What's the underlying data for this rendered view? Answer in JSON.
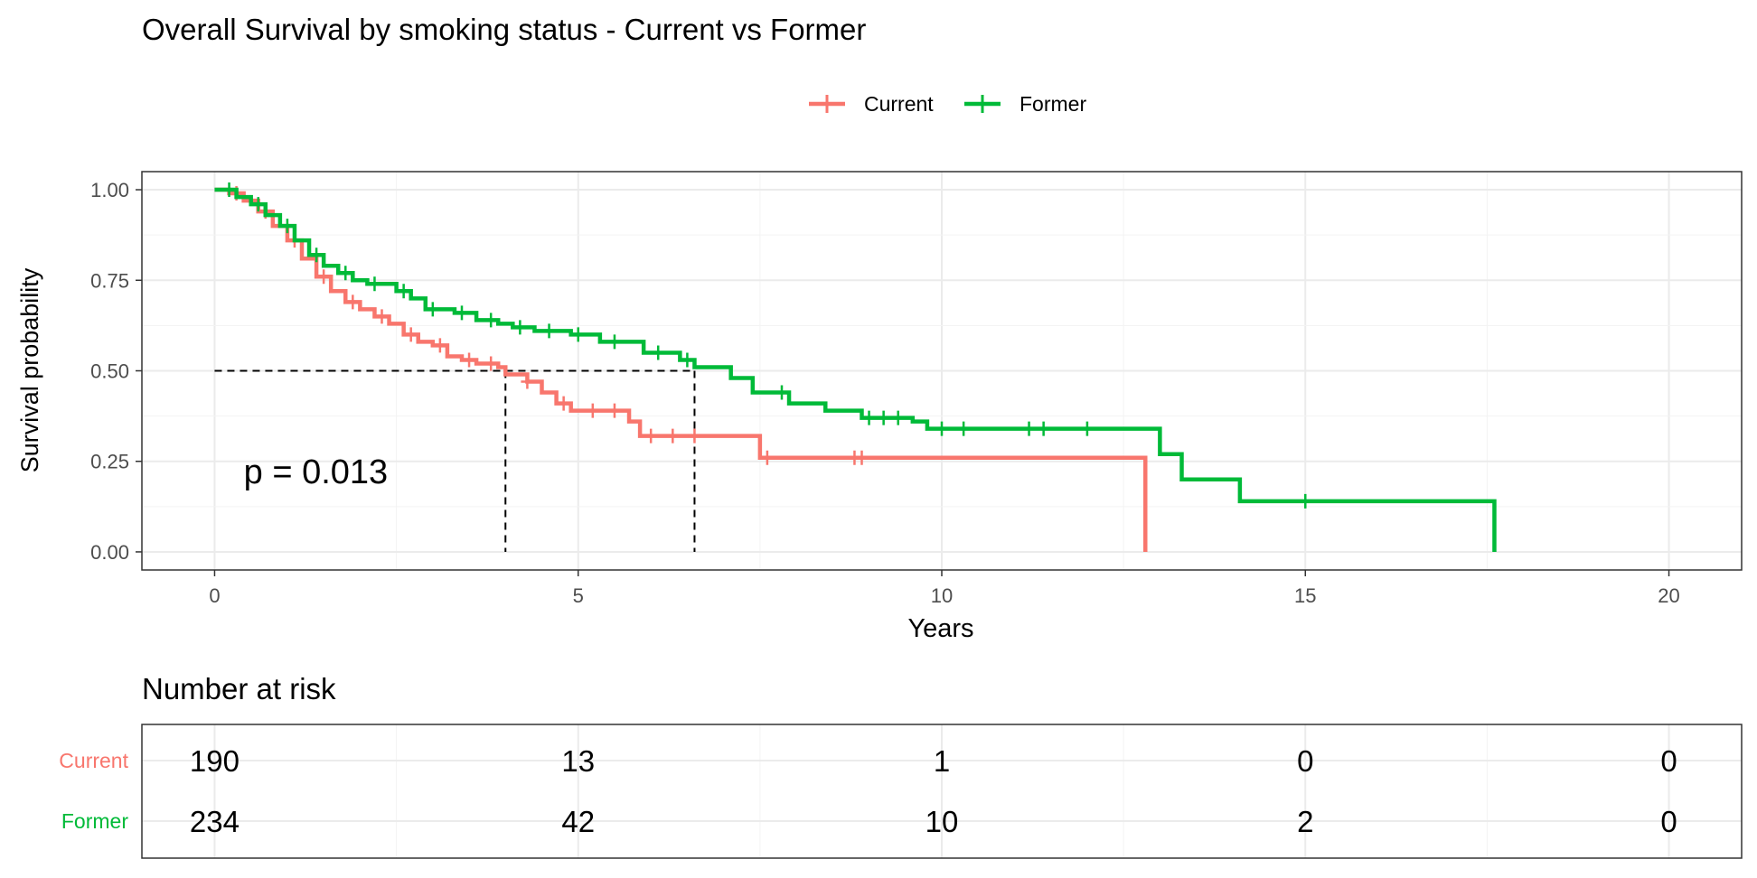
{
  "chart_data": {
    "type": "line",
    "subtype": "kaplan-meier",
    "title": "Overall Survival by smoking status - Current vs Former",
    "xlabel": "Years",
    "ylabel": "Survival probability",
    "xlim": [
      -1,
      21
    ],
    "ylim": [
      -0.05,
      1.05
    ],
    "xticks": [
      0,
      5,
      10,
      15,
      20
    ],
    "xtick_labels": [
      "0",
      "5",
      "10",
      "15",
      "20"
    ],
    "yticks": [
      0,
      0.25,
      0.5,
      0.75,
      1.0
    ],
    "ytick_labels": [
      "0.00",
      "0.25",
      "0.50",
      "0.75",
      "1.00"
    ],
    "grid": true,
    "legend_position": "top-center",
    "annotation": "p = 0.013",
    "annotation_at": [
      0.4,
      0.19
    ],
    "median_survival": [
      {
        "series": "Current",
        "x": 4.0,
        "y": 0.5
      },
      {
        "series": "Former",
        "x": 6.6,
        "y": 0.5
      }
    ],
    "series": [
      {
        "name": "Current",
        "color": "#F8766D",
        "steps": [
          [
            0,
            1.0
          ],
          [
            0.2,
            0.99
          ],
          [
            0.4,
            0.97
          ],
          [
            0.6,
            0.94
          ],
          [
            0.8,
            0.9
          ],
          [
            1.0,
            0.86
          ],
          [
            1.2,
            0.81
          ],
          [
            1.4,
            0.76
          ],
          [
            1.6,
            0.72
          ],
          [
            1.8,
            0.69
          ],
          [
            2.0,
            0.67
          ],
          [
            2.2,
            0.65
          ],
          [
            2.4,
            0.63
          ],
          [
            2.6,
            0.6
          ],
          [
            2.8,
            0.58
          ],
          [
            3.0,
            0.57
          ],
          [
            3.2,
            0.54
          ],
          [
            3.4,
            0.53
          ],
          [
            3.6,
            0.52
          ],
          [
            3.9,
            0.51
          ],
          [
            4.0,
            0.49
          ],
          [
            4.3,
            0.47
          ],
          [
            4.5,
            0.44
          ],
          [
            4.7,
            0.41
          ],
          [
            4.9,
            0.39
          ],
          [
            5.7,
            0.36
          ],
          [
            5.85,
            0.32
          ],
          [
            7.5,
            0.26
          ],
          [
            12.8,
            0.26
          ],
          [
            12.8,
            0.0
          ]
        ],
        "censor_x": [
          0.3,
          0.7,
          1.1,
          1.5,
          1.9,
          2.3,
          2.7,
          3.1,
          3.5,
          3.8,
          4.3,
          4.8,
          5.2,
          5.5,
          6.0,
          6.3,
          6.6,
          7.6,
          8.8,
          8.9
        ]
      },
      {
        "name": "Former",
        "color": "#00BA38",
        "steps": [
          [
            0,
            1.0
          ],
          [
            0.3,
            0.98
          ],
          [
            0.5,
            0.96
          ],
          [
            0.7,
            0.93
          ],
          [
            0.9,
            0.9
          ],
          [
            1.1,
            0.86
          ],
          [
            1.3,
            0.82
          ],
          [
            1.5,
            0.79
          ],
          [
            1.7,
            0.77
          ],
          [
            1.9,
            0.75
          ],
          [
            2.1,
            0.74
          ],
          [
            2.5,
            0.72
          ],
          [
            2.7,
            0.7
          ],
          [
            2.9,
            0.67
          ],
          [
            3.3,
            0.66
          ],
          [
            3.6,
            0.64
          ],
          [
            3.9,
            0.63
          ],
          [
            4.1,
            0.62
          ],
          [
            4.4,
            0.61
          ],
          [
            4.9,
            0.6
          ],
          [
            5.3,
            0.58
          ],
          [
            5.9,
            0.55
          ],
          [
            6.4,
            0.53
          ],
          [
            6.6,
            0.51
          ],
          [
            7.1,
            0.48
          ],
          [
            7.4,
            0.44
          ],
          [
            7.9,
            0.41
          ],
          [
            8.4,
            0.39
          ],
          [
            8.9,
            0.37
          ],
          [
            9.6,
            0.36
          ],
          [
            9.8,
            0.34
          ],
          [
            13.0,
            0.27
          ],
          [
            13.3,
            0.2
          ],
          [
            14.1,
            0.14
          ],
          [
            17.6,
            0.14
          ],
          [
            17.6,
            0.0
          ]
        ],
        "censor_x": [
          0.2,
          0.6,
          1.0,
          1.4,
          1.8,
          2.2,
          2.6,
          3.0,
          3.4,
          3.8,
          4.2,
          4.6,
          5.0,
          5.5,
          6.1,
          6.5,
          7.8,
          9.0,
          9.2,
          9.4,
          10.0,
          10.3,
          11.2,
          11.4,
          12.0,
          15.0
        ]
      }
    ]
  },
  "risk_table": {
    "title": "Number at risk",
    "x": [
      0,
      5,
      10,
      15,
      20
    ],
    "rows": [
      {
        "label": "Current",
        "color": "#F8766D",
        "values": [
          "190",
          "13",
          "1",
          "0",
          "0"
        ]
      },
      {
        "label": "Former",
        "color": "#00BA38",
        "values": [
          "234",
          "42",
          "10",
          "2",
          "0"
        ]
      }
    ]
  }
}
